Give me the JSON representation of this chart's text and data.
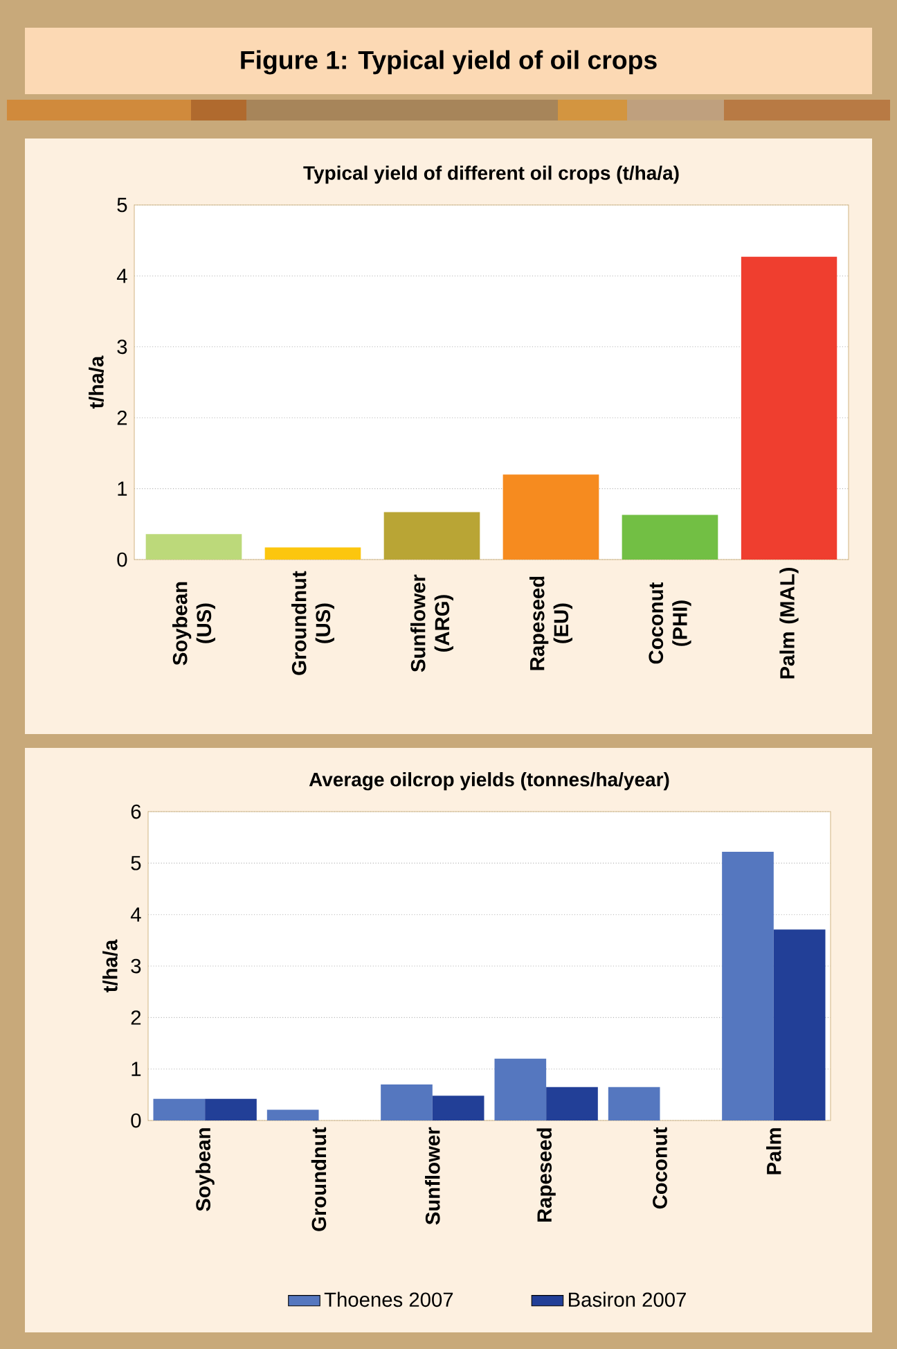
{
  "chart_data": [
    {
      "type": "bar",
      "title": "Figure 1: Typical yield of oil crops",
      "subtitle": "Typical yield of different oil crops (t/ha/a)",
      "ylabel": "t/ha/a",
      "categories": [
        "Soybean (US)",
        "Groundnut (US)",
        "Sunflower (ARG)",
        "Rapeseed (EU)",
        "Coconut (PHI)",
        "Palm (MAL)"
      ],
      "values": [
        0.36,
        0.17,
        0.67,
        1.2,
        0.63,
        4.27
      ],
      "colors": [
        "#bcd97a",
        "#fcc60e",
        "#b9a535",
        "#f68b1f",
        "#72bf44",
        "#ef3e2f"
      ],
      "ylim": [
        0,
        5
      ],
      "yticks": [
        0,
        1,
        2,
        3,
        4,
        5
      ],
      "grid": "y"
    },
    {
      "type": "bar",
      "title": "Average oilcrop yields (tonnes/ha/year)",
      "ylabel": "t/ha/a",
      "categories": [
        "Soybean",
        "Groundnut",
        "Sunflower",
        "Rapeseed",
        "Coconut",
        "Palm"
      ],
      "series": [
        {
          "name": "Thoenes 2007",
          "color": "#5577bf",
          "values": [
            0.42,
            0.21,
            0.7,
            1.2,
            0.65,
            5.22
          ]
        },
        {
          "name": "Basiron 2007",
          "color": "#223f97",
          "values": [
            0.42,
            null,
            0.48,
            0.65,
            null,
            3.71
          ]
        }
      ],
      "ylim": [
        0,
        6
      ],
      "yticks": [
        0,
        1,
        2,
        3,
        4,
        5,
        6
      ],
      "grid": "y",
      "legend": "bottom"
    }
  ]
}
